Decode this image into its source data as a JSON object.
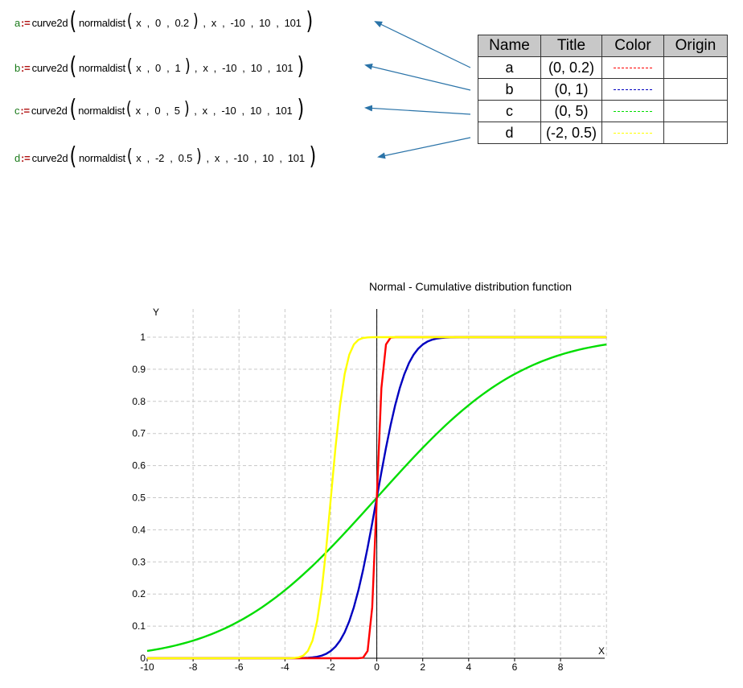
{
  "formulas": [
    {
      "var": "a",
      "assign": ":=",
      "fn": "curve2d",
      "inner": "normaldist",
      "args": [
        "x",
        "0",
        "0.2"
      ],
      "rest": [
        "x",
        "-10",
        "10",
        "101"
      ]
    },
    {
      "var": "b",
      "assign": ":=",
      "fn": "curve2d",
      "inner": "normaldist",
      "args": [
        "x",
        "0",
        "1"
      ],
      "rest": [
        "x",
        "-10",
        "10",
        "101"
      ]
    },
    {
      "var": "c",
      "assign": ":=",
      "fn": "curve2d",
      "inner": "normaldist",
      "args": [
        "x",
        "0",
        "5"
      ],
      "rest": [
        "x",
        "-10",
        "10",
        "101"
      ]
    },
    {
      "var": "d",
      "assign": ":=",
      "fn": "curve2d",
      "inner": "normaldist",
      "args": [
        "x",
        "-2",
        "0.5"
      ],
      "rest": [
        "x",
        "-10",
        "10",
        "101"
      ]
    }
  ],
  "table": {
    "headers": [
      "Name",
      "Title",
      "Color",
      "Origin"
    ],
    "rows": [
      {
        "name": "a",
        "title": "(0, 0.2)",
        "color": "#ff0000",
        "origin": ""
      },
      {
        "name": "b",
        "title": "(0, 1)",
        "color": "#0000c0",
        "origin": ""
      },
      {
        "name": "c",
        "title": "(0, 5)",
        "color": "#00dd00",
        "origin": ""
      },
      {
        "name": "d",
        "title": "(-2, 0.5)",
        "color": "#ffff00",
        "origin": ""
      }
    ]
  },
  "colors": {
    "var_green": "#1a7a1a",
    "assign_red": "#b01010",
    "arrow_blue": "#2a73a8",
    "table_header_bg": "#c8c8c8"
  },
  "chart_data": {
    "type": "line",
    "title": "Normal - Cumulative distribution function",
    "xlabel": "X",
    "ylabel": "Y",
    "xlim": [
      -10,
      10
    ],
    "ylim": [
      0,
      1
    ],
    "grid": true,
    "x_ticks": [
      "-10",
      "-8",
      "-6",
      "-4",
      "-2",
      "0",
      "2",
      "4",
      "6",
      "8"
    ],
    "y_ticks": [
      "0",
      "0.1",
      "0.2",
      "0.3",
      "0.4",
      "0.5",
      "0.6",
      "0.7",
      "0.8",
      "0.9",
      "1"
    ],
    "series": [
      {
        "name": "a",
        "mu": 0,
        "sigma": 0.2,
        "color": "#ff0000",
        "points": 101
      },
      {
        "name": "b",
        "mu": 0,
        "sigma": 1,
        "color": "#0000c0",
        "points": 101
      },
      {
        "name": "c",
        "mu": 0,
        "sigma": 5,
        "color": "#00dd00",
        "points": 101
      },
      {
        "name": "d",
        "mu": -2,
        "sigma": 0.5,
        "color": "#ffff00",
        "points": 101
      }
    ]
  }
}
